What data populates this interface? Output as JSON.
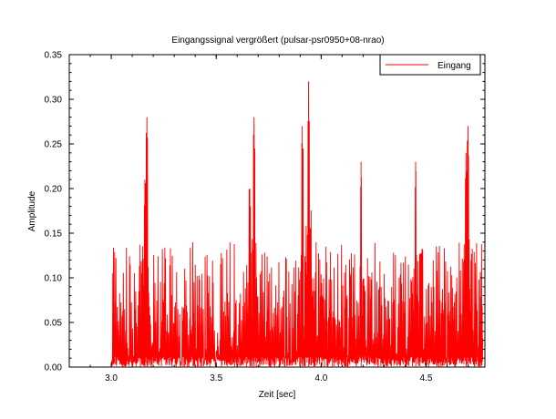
{
  "chart_data": {
    "type": "line",
    "title": "Eingangssignal vergrößert (pulsar-psr0950+08-nrao)",
    "xlabel": "Zeit [sec]",
    "ylabel": "Amplitude",
    "xlim": [
      2.8,
      4.78
    ],
    "ylim": [
      0.0,
      0.35
    ],
    "x_ticks": [
      "3.0",
      "3.5",
      "4.0",
      "4.5"
    ],
    "x_tick_values": [
      3.0,
      3.5,
      4.0,
      4.5
    ],
    "y_ticks": [
      "0.00",
      "0.05",
      "0.10",
      "0.15",
      "0.20",
      "0.25",
      "0.30",
      "0.35"
    ],
    "y_tick_values": [
      0.0,
      0.05,
      0.1,
      0.15,
      0.2,
      0.25,
      0.3,
      0.35
    ],
    "grid": false,
    "legend": {
      "position": "top-right",
      "entries": [
        "Eingang"
      ]
    },
    "series": [
      {
        "name": "Eingang",
        "color": "#ff0000",
        "x_start": 3.0,
        "x_end": 4.77,
        "sample_count": 1200,
        "peaks": [
          {
            "x": 3.17,
            "y": 0.28
          },
          {
            "x": 3.16,
            "y": 0.21
          },
          {
            "x": 3.68,
            "y": 0.28
          },
          {
            "x": 3.66,
            "y": 0.2
          },
          {
            "x": 3.91,
            "y": 0.27
          },
          {
            "x": 3.94,
            "y": 0.32
          },
          {
            "x": 4.19,
            "y": 0.23
          },
          {
            "x": 4.45,
            "y": 0.23
          },
          {
            "x": 4.7,
            "y": 0.27
          },
          {
            "x": 4.69,
            "y": 0.24
          }
        ],
        "baseline_max": 0.14
      }
    ]
  }
}
